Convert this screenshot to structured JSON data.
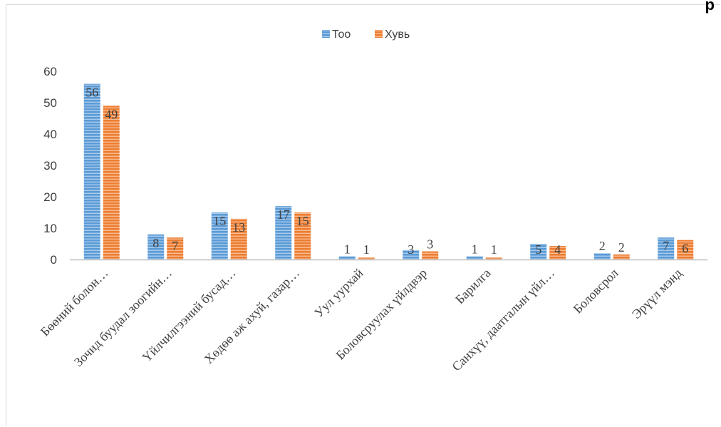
{
  "header_fragment": "р",
  "chart_data": {
    "type": "bar",
    "categories": [
      "Бөөний  болон…",
      "Зочид буудал зоогийн…",
      "Үйлчилгээний бусад…",
      "Хөдөө аж ахуй, газар…",
      "Уул уурхай",
      "Боловсруулах үйлдвэр",
      "Барилга",
      "Санхүү, даатгалын үйл…",
      "Боловсрол",
      "Эрүүл мэнд"
    ],
    "series": [
      {
        "name": "Тоо",
        "values": [
          56,
          8,
          15,
          17,
          1,
          3,
          1,
          5,
          2,
          7
        ],
        "labels": [
          "56",
          "8",
          "15",
          "17",
          "1",
          "3",
          "1",
          "5",
          "2",
          "7"
        ],
        "color": "#5b9bd5"
      },
      {
        "name": "Хувь",
        "values": [
          49,
          7,
          13,
          15,
          0.6,
          2.6,
          0.6,
          4.3,
          1.6,
          6.2
        ],
        "labels": [
          "49",
          "7",
          "13",
          "15",
          "1",
          "3",
          "1",
          "4",
          "2",
          "6"
        ],
        "color": "#ed7d31"
      }
    ],
    "yticks": [
      "0",
      "10",
      "20",
      "30",
      "40",
      "50",
      "60"
    ],
    "ylim": [
      0,
      60
    ],
    "grid": false,
    "legend": "top-center"
  }
}
